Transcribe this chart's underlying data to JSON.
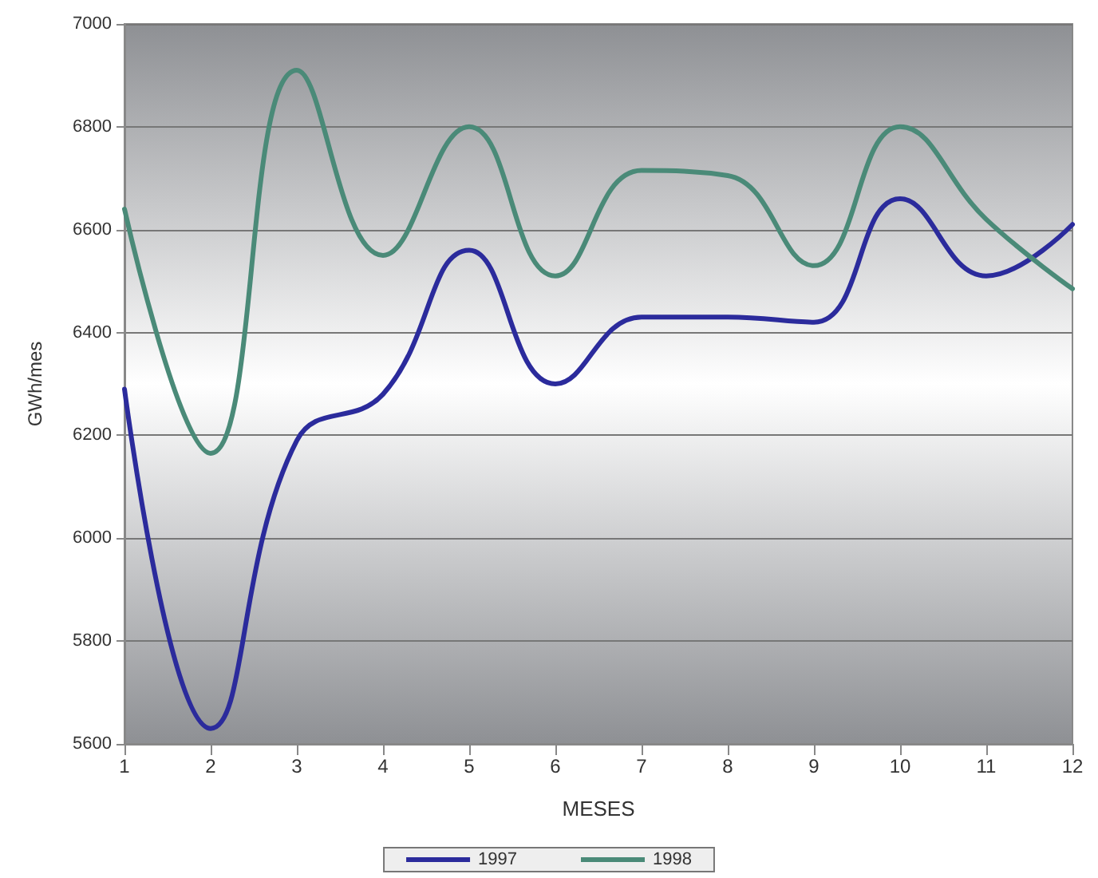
{
  "chart_data": {
    "type": "line",
    "xlabel": "MESES",
    "ylabel": "GWh/mes",
    "x": [
      1,
      2,
      3,
      4,
      5,
      6,
      7,
      8,
      9,
      10,
      11,
      12
    ],
    "xlim": [
      1,
      12
    ],
    "xticks": [
      1,
      2,
      3,
      4,
      5,
      6,
      7,
      8,
      9,
      10,
      11,
      12
    ],
    "series": [
      {
        "name": "1997",
        "color": "#2b2b9c",
        "values": [
          6290,
          5630,
          6190,
          6280,
          6560,
          6300,
          6430,
          6430,
          6420,
          6660,
          6510,
          6610
        ]
      },
      {
        "name": "1998",
        "color": "#4a8a78",
        "values": [
          6640,
          6165,
          6910,
          6550,
          6800,
          6510,
          6715,
          6705,
          6530,
          6800,
          6620,
          6485
        ]
      }
    ],
    "ylim": [
      5600,
      7000
    ],
    "yticks": [
      5600,
      5800,
      6000,
      6200,
      6400,
      6600,
      6800,
      7000
    ],
    "grid": "y",
    "legend": "bottom",
    "marker": "none",
    "line_style": "solid"
  }
}
